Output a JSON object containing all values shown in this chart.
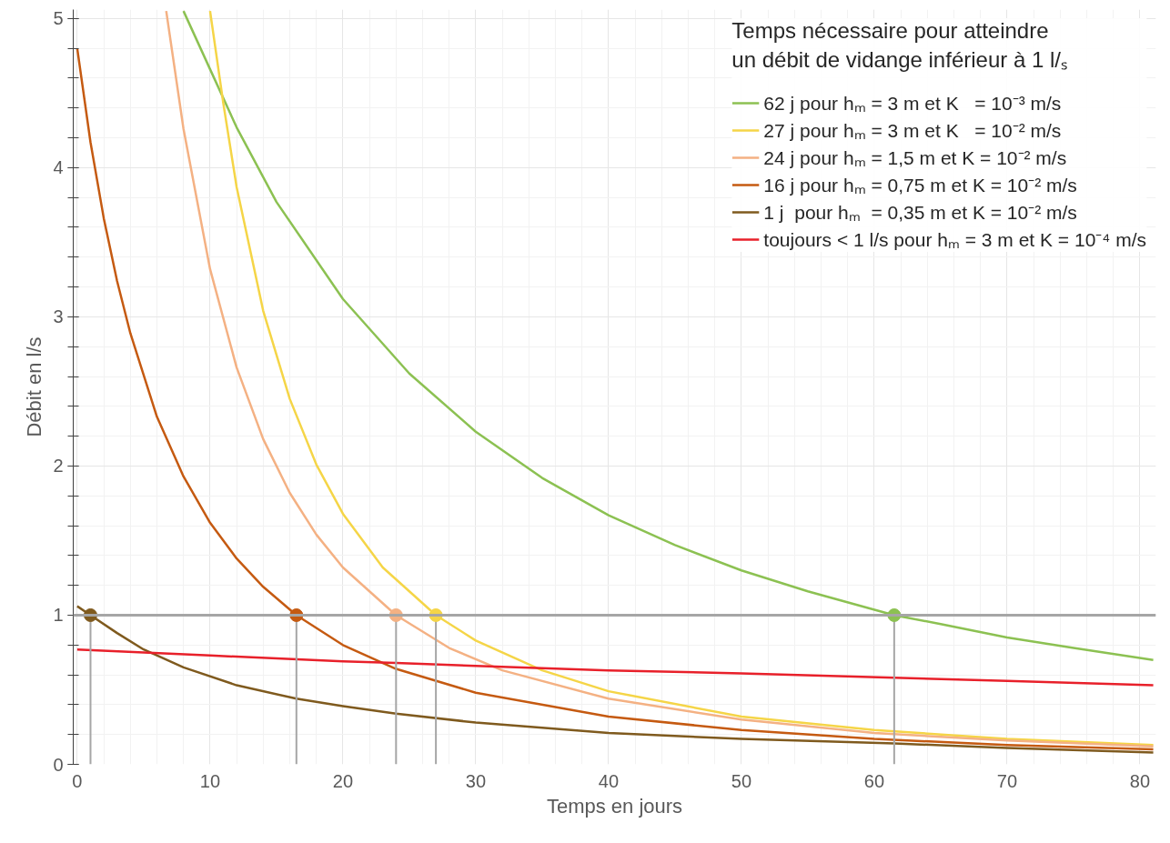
{
  "chart_data": {
    "type": "line",
    "xlabel": "Temps en jours",
    "ylabel": "Débit en l/s",
    "legend_title": "Temps nécessaire pour atteindre\nun débit de vidange inférieur à 1 l/ₛ",
    "xlim": [
      -0.3,
      81.2
    ],
    "ylim": [
      0,
      5.06
    ],
    "xticks": [
      0,
      10,
      20,
      30,
      40,
      50,
      60,
      70,
      80
    ],
    "yticks": [
      0,
      1,
      2,
      3,
      4,
      5
    ],
    "grid": true,
    "legend": "top right",
    "marker": "none",
    "line_style": "solid",
    "ref_lines": [
      {
        "axis": "y",
        "value": 1,
        "color": "#a6a6a6"
      }
    ],
    "series": [
      {
        "name": "62 j pour hₘ = 3 m et K   = 10⁻³ m/s",
        "color": "#8cc152",
        "x": [
          8,
          10,
          12,
          15,
          20,
          25,
          30,
          35,
          40,
          45,
          50,
          55,
          61.5,
          65,
          70,
          75,
          81
        ],
        "values": [
          5.05,
          4.66,
          4.27,
          3.77,
          3.12,
          2.62,
          2.23,
          1.92,
          1.67,
          1.47,
          1.3,
          1.16,
          1.0,
          0.94,
          0.85,
          0.78,
          0.7
        ]
      },
      {
        "name": "27 j pour hₘ = 3 m et K   = 10⁻² m/s",
        "color": "#f5d547",
        "x": [
          10,
          11,
          12,
          14,
          16,
          18,
          20,
          23,
          27,
          30,
          35,
          40,
          50,
          60,
          70,
          81
        ],
        "values": [
          5.05,
          4.43,
          3.87,
          3.04,
          2.45,
          2.01,
          1.68,
          1.32,
          1.0,
          0.83,
          0.63,
          0.49,
          0.32,
          0.23,
          0.17,
          0.13
        ]
      },
      {
        "name": "24 j pour hₘ = 1,5 m et K = 10⁻² m/s",
        "color": "#f4b183",
        "x": [
          6.7,
          8,
          10,
          12,
          14,
          16,
          18,
          20,
          24,
          28,
          32,
          40,
          50,
          60,
          70,
          81
        ],
        "values": [
          5.05,
          4.26,
          3.32,
          2.66,
          2.18,
          1.82,
          1.54,
          1.32,
          1.0,
          0.78,
          0.63,
          0.44,
          0.3,
          0.21,
          0.16,
          0.12
        ]
      },
      {
        "name": "16 j pour hₘ = 0,75 m et K = 10⁻² m/s",
        "color": "#c55a11",
        "x": [
          0,
          1,
          2,
          3,
          4,
          6,
          8,
          10,
          12,
          14,
          16.5,
          20,
          24,
          30,
          40,
          50,
          60,
          70,
          81
        ],
        "values": [
          4.8,
          4.17,
          3.66,
          3.24,
          2.89,
          2.33,
          1.93,
          1.62,
          1.38,
          1.19,
          1.0,
          0.8,
          0.64,
          0.48,
          0.32,
          0.23,
          0.17,
          0.13,
          0.1
        ]
      },
      {
        "name": "1 j  pour hₘ  = 0,35 m et K = 10⁻² m/s",
        "color": "#7f5a1e",
        "x": [
          0,
          1,
          3,
          5,
          8,
          12,
          16.5,
          20,
          24,
          30,
          40,
          50,
          61.5,
          70,
          81
        ],
        "values": [
          1.06,
          1.0,
          0.88,
          0.77,
          0.65,
          0.53,
          0.44,
          0.39,
          0.34,
          0.28,
          0.21,
          0.17,
          0.14,
          0.11,
          0.08
        ]
      },
      {
        "name": "toujours < 1 l/s pour hₘ = 3 m et K = 10⁻⁴ m/s",
        "color": "#e8202a",
        "x": [
          0,
          10,
          20,
          24,
          30,
          40,
          50,
          61.5,
          70,
          81
        ],
        "values": [
          0.77,
          0.73,
          0.69,
          0.68,
          0.66,
          0.63,
          0.61,
          0.58,
          0.56,
          0.53
        ]
      },
      {
        "type": "scatter",
        "marker": "circle",
        "colors": [
          "#7f5a1e",
          "#c55a11",
          "#f4b183",
          "#f5d547",
          "#8cc152"
        ],
        "x": [
          1,
          16.5,
          24,
          27,
          61.5
        ],
        "values": [
          1,
          1,
          1,
          1,
          1
        ],
        "errors": [
          [
            1,
            0
          ],
          [
            1,
            0
          ],
          [
            1,
            0
          ],
          [
            1,
            0
          ],
          [
            1,
            0
          ]
        ]
      }
    ]
  }
}
